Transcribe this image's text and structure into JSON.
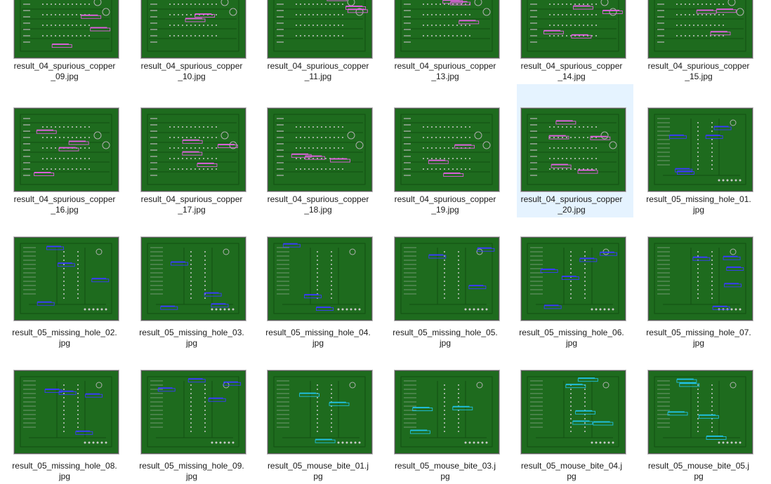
{
  "files": [
    {
      "name": "result_04_spurious_copper_09.jpg",
      "kind": "copper"
    },
    {
      "name": "result_04_spurious_copper_10.jpg",
      "kind": "copper"
    },
    {
      "name": "result_04_spurious_copper_11.jpg",
      "kind": "copper"
    },
    {
      "name": "result_04_spurious_copper_13.jpg",
      "kind": "copper"
    },
    {
      "name": "result_04_spurious_copper_14.jpg",
      "kind": "copper"
    },
    {
      "name": "result_04_spurious_copper_15.jpg",
      "kind": "copper"
    },
    {
      "name": "result_04_spurious_copper_16.jpg",
      "kind": "copper"
    },
    {
      "name": "result_04_spurious_copper_17.jpg",
      "kind": "copper"
    },
    {
      "name": "result_04_spurious_copper_18.jpg",
      "kind": "copper"
    },
    {
      "name": "result_04_spurious_copper_19.jpg",
      "kind": "copper"
    },
    {
      "name": "result_04_spurious_copper_20.jpg",
      "kind": "copper",
      "selected": true
    },
    {
      "name": "result_05_missing_hole_01.jpg",
      "kind": "hole"
    },
    {
      "name": "result_05_missing_hole_02.jpg",
      "kind": "hole"
    },
    {
      "name": "result_05_missing_hole_03.jpg",
      "kind": "hole"
    },
    {
      "name": "result_05_missing_hole_04.jpg",
      "kind": "hole"
    },
    {
      "name": "result_05_missing_hole_05.jpg",
      "kind": "hole"
    },
    {
      "name": "result_05_missing_hole_06.jpg",
      "kind": "hole"
    },
    {
      "name": "result_05_missing_hole_07.jpg",
      "kind": "hole"
    },
    {
      "name": "result_05_missing_hole_08.jpg",
      "kind": "hole"
    },
    {
      "name": "result_05_missing_hole_09.jpg",
      "kind": "hole"
    },
    {
      "name": "result_05_mouse_bite_01.jpg",
      "kind": "bite"
    },
    {
      "name": "result_05_mouse_bite_03.jpg",
      "kind": "bite"
    },
    {
      "name": "result_05_mouse_bite_04.jpg",
      "kind": "bite"
    },
    {
      "name": "result_05_mouse_bite_05.jpg",
      "kind": "bite"
    }
  ],
  "colors": {
    "board": "#1e6b1e",
    "copper_box": "#e060e0",
    "hole_box": "#3a3aff",
    "bite_box": "#20c0e0"
  }
}
